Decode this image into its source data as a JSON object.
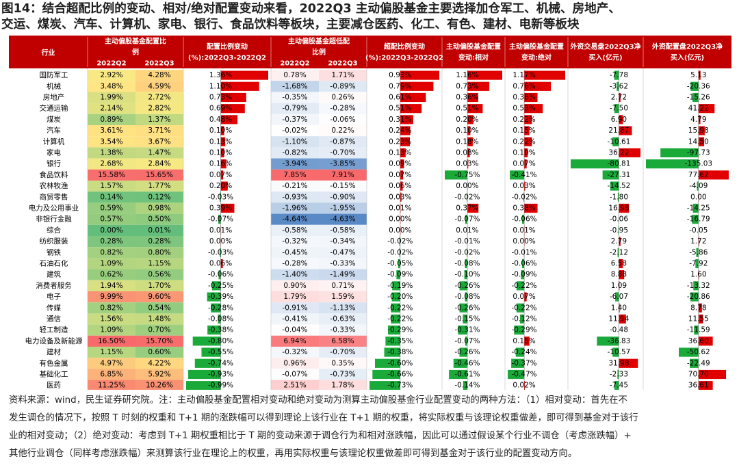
{
  "title_lines": [
    "图14：结合超配比例的变动、相对/绝对配置变动来看，2022Q3 主动偏股基金主要选择加仓军工、机械、房地产、",
    "交运、煤炭、汽车、计算机、家电、银行、食品饮料等板块，主要减仓医药、化工、有色、建材、电新等板块"
  ],
  "footer_lines": [
    "资料来源：wind，民生证券研究院。注：主动偏股基金配置相对变动和绝对变动为测算主动偏股基金行业配置变动的两种方法：（1）相对变动：首先在不",
    "发生调仓的情况下，按照 T 时刻的权重和 T+1 期的涨跌幅可以得到理论上该行业在 T+1 期的权重，将实际权重与该理论权重做差，即可得到基金对于该行",
    "业的相对变动；（2）绝对变动：考虑到 T+1 期权重相比于 T 期的变动来源于调仓行为和相对涨跌幅，因此可以通过假设某个行业不调仓（考虑涨跌幅）+",
    "其他行业调仓（同样考虑涨跌幅）来测算该行业在理论上的权重，再用实际权重与该理论权重做差即可得到基金对于该行业的配置变动方向。"
  ],
  "chart_data": {
    "type": "table",
    "header_row1": {
      "industry": "行业",
      "weight": "主动偏股基金配置比例",
      "weight_change": "配置比例变动",
      "overweight": "主动偏股基金超低配比例",
      "overweight_change": "超配比例变动",
      "relative_change": "主动偏股基金配置变动:相对",
      "absolute_change": "主动偏股基金配置变动:绝对",
      "foreign_trading": "外资交易盘2022Q3净买入(亿元)",
      "foreign_allocation": "外资配置盘2022Q3净买入(亿元)"
    },
    "header_row2": {
      "q2": "2022Q2",
      "q3": "2022Q3",
      "weight_change_sub": "(%):2022Q3-2022Q2",
      "overweight_change_sub": "(%):2022Q3-2022Q2"
    },
    "colors": {
      "header_bg": "#c00000",
      "bar_pos": "#e00000",
      "bar_neg": "#1aaa3a",
      "heat_high": "#f8696b",
      "heat_mid": "#ffeb84",
      "heat_low": "#63be7b",
      "blue_low": "#5a8ac6",
      "red_high": "#f8696b"
    },
    "axis_ranges": {
      "weight_change": [
        -0.99,
        1.36
      ],
      "overweight_change": [
        -0.73,
        0.93
      ],
      "relative_change": [
        -0.75,
        1.16
      ],
      "absolute_change": [
        -0.47,
        1.17
      ],
      "foreign_trading": [
        -80.81,
        36.22
      ],
      "foreign_allocation": [
        -135.03,
        77.62
      ]
    },
    "rows": [
      {
        "industry": "国防军工",
        "w_q2": "2.92%",
        "w_q3": "4.28%",
        "w_chg": 1.36,
        "o_q2": "0.78%",
        "o_q3": "1.71%",
        "o_chg": 0.93,
        "rel": 1.16,
        "abs": 1.17,
        "ft": -7.78,
        "fa": 5.13
      },
      {
        "industry": "机械",
        "w_q2": "3.48%",
        "w_q3": "4.59%",
        "w_chg": 1.1,
        "o_q2": "-1.68%",
        "o_q3": "-0.89%",
        "o_chg": 0.79,
        "rel": 0.73,
        "abs": 0.76,
        "ft": -3.62,
        "fa": -20.36
      },
      {
        "industry": "房地产",
        "w_q2": "1.99%",
        "w_q3": "2.72%",
        "w_chg": 0.73,
        "o_q2": "-0.35%",
        "o_q3": "0.26%",
        "o_chg": 0.61,
        "rel": 0.36,
        "abs": 0.38,
        "ft": 2.72,
        "fa": -15.26
      },
      {
        "industry": "交通运输",
        "w_q2": "2.14%",
        "w_q3": "2.82%",
        "w_chg": 0.69,
        "o_q2": "-0.79%",
        "o_q3": "-0.28%",
        "o_chg": 0.51,
        "rel": 0.51,
        "abs": 0.53,
        "ft": -7.5,
        "fa": 41.22
      },
      {
        "industry": "煤炭",
        "w_q2": "0.89%",
        "w_q3": "1.37%",
        "w_chg": 0.48,
        "o_q2": "-0.37%",
        "o_q3": "-0.06%",
        "o_chg": 0.31,
        "rel": 0.2,
        "abs": 0.22,
        "ft": 6.9,
        "fa": 4.79
      },
      {
        "industry": "汽车",
        "w_q2": "3.61%",
        "w_q3": "3.71%",
        "w_chg": 0.1,
        "o_q2": "-0.02%",
        "o_q3": "0.22%",
        "o_chg": 0.24,
        "rel": 0.1,
        "abs": 0.15,
        "ft": 21.87,
        "fa": 15.98
      },
      {
        "industry": "计算机",
        "w_q2": "3.54%",
        "w_q3": "3.67%",
        "w_chg": 0.13,
        "o_q2": "-1.10%",
        "o_q3": "-0.87%",
        "o_chg": 0.23,
        "rel": 0.18,
        "abs": 0.22,
        "ft": -10.61,
        "fa": 14.5
      },
      {
        "industry": "家电",
        "w_q2": "1.38%",
        "w_q3": "1.47%",
        "w_chg": 0.1,
        "o_q2": "-0.82%",
        "o_q3": "-0.70%",
        "o_chg": 0.13,
        "rel": 0.08,
        "abs": 0.1,
        "ft": 36.22,
        "fa": -97.73
      },
      {
        "industry": "银行",
        "w_q2": "2.68%",
        "w_q3": "2.84%",
        "w_chg": 0.16,
        "o_q2": "-3.94%",
        "o_q3": "-3.85%",
        "o_chg": 0.09,
        "rel": 0.03,
        "abs": 0.07,
        "ft": -80.81,
        "fa": -135.03
      },
      {
        "industry": "食品饮料",
        "w_q2": "15.58%",
        "w_q3": "15.65%",
        "w_chg": 0.07,
        "o_q2": "7.85%",
        "o_q3": "7.91%",
        "o_chg": 0.07,
        "rel": -0.75,
        "abs": -0.41,
        "ft": -27.31,
        "fa": 77.62
      },
      {
        "industry": "农林牧渔",
        "w_q2": "1.57%",
        "w_q3": "1.77%",
        "w_chg": 0.2,
        "o_q2": "-0.21%",
        "o_q3": "-0.15%",
        "o_chg": 0.06,
        "rel": 0.0,
        "abs": 0.03,
        "ft": -14.52,
        "fa": -4.09
      },
      {
        "industry": "商贸零售",
        "w_q2": "0.14%",
        "w_q3": "0.12%",
        "w_chg": -0.03,
        "o_q2": "-0.93%",
        "o_q3": "-0.90%",
        "o_chg": 0.03,
        "rel": -0.02,
        "abs": -0.02,
        "ft": -1.8,
        "fa": 0.0
      },
      {
        "industry": "电力及公用事业",
        "w_q2": "0.59%",
        "w_q3": "0.98%",
        "w_chg": 0.39,
        "o_q2": "-1.96%",
        "o_q3": "-1.95%",
        "o_chg": 0.01,
        "rel": 0.37,
        "abs": 0.38,
        "ft": 16.98,
        "fa": -14.25
      },
      {
        "industry": "非银行金融",
        "w_q2": "0.57%",
        "w_q3": "0.50%",
        "w_chg": -0.07,
        "o_q2": "-4.64%",
        "o_q3": "-4.63%",
        "o_chg": 0.0,
        "rel": -0.07,
        "abs": -0.06,
        "ft": -0.06,
        "fa": -16.79
      },
      {
        "industry": "综合",
        "w_q2": "0.00%",
        "w_q3": "0.01%",
        "w_chg": 0.01,
        "o_q2": "-0.58%",
        "o_q3": "-0.58%",
        "o_chg": 0.0,
        "rel": 0.01,
        "abs": 0.01,
        "ft": -0.95,
        "fa": -0.05
      },
      {
        "industry": "纺织服装",
        "w_q2": "0.28%",
        "w_q3": "0.28%",
        "w_chg": 0.0,
        "o_q2": "-0.32%",
        "o_q3": "-0.34%",
        "o_chg": -0.02,
        "rel": -0.01,
        "abs": 0.0,
        "ft": 2.79,
        "fa": 1.72
      },
      {
        "industry": "钢铁",
        "w_q2": "0.82%",
        "w_q3": "0.80%",
        "w_chg": -0.03,
        "o_q2": "-0.45%",
        "o_q3": "-0.47%",
        "o_chg": -0.02,
        "rel": -0.02,
        "abs": -0.01,
        "ft": -2.12,
        "fa": -5.86
      },
      {
        "industry": "石油石化",
        "w_q2": "1.09%",
        "w_q3": "1.15%",
        "w_chg": 0.06,
        "o_q2": "-0.28%",
        "o_q3": "-0.33%",
        "o_chg": -0.05,
        "rel": -0.08,
        "abs": -0.06,
        "ft": 6.58,
        "fa": -7.92
      },
      {
        "industry": "建筑",
        "w_q2": "0.62%",
        "w_q3": "0.56%",
        "w_chg": -0.06,
        "o_q2": "-1.40%",
        "o_q3": "-1.49%",
        "o_chg": -0.09,
        "rel": -0.1,
        "abs": -0.09,
        "ft": 8.88,
        "fa": 1.6
      },
      {
        "industry": "消费者服务",
        "w_q2": "1.94%",
        "w_q3": "1.70%",
        "w_chg": -0.25,
        "o_q2": "0.90%",
        "o_q3": "0.71%",
        "o_chg": -0.19,
        "rel": -0.26,
        "abs": -0.22,
        "ft": 1.09,
        "fa": -13.32
      },
      {
        "industry": "电子",
        "w_q2": "9.99%",
        "w_q3": "9.60%",
        "w_chg": -0.39,
        "o_q2": "1.79%",
        "o_q3": "1.59%",
        "o_chg": -0.2,
        "rel": -0.08,
        "abs": 0.07,
        "ft": -6.07,
        "fa": -20.86
      },
      {
        "industry": "传媒",
        "w_q2": "0.82%",
        "w_q3": "0.54%",
        "w_chg": -0.28,
        "o_q2": "-0.91%",
        "o_q3": "-1.13%",
        "o_chg": -0.22,
        "rel": -0.26,
        "abs": -0.22,
        "ft": 1.4,
        "fa": 8.78
      },
      {
        "industry": "通信",
        "w_q2": "1.56%",
        "w_q3": "1.48%",
        "w_chg": -0.08,
        "o_q2": "-0.41%",
        "o_q3": "-0.63%",
        "o_chg": -0.22,
        "rel": -0.15,
        "abs": -0.12,
        "ft": 11.94,
        "fa": 11.55
      },
      {
        "industry": "轻工制造",
        "w_q2": "1.09%",
        "w_q3": "0.70%",
        "w_chg": -0.38,
        "o_q2": "-0.04%",
        "o_q3": "-0.33%",
        "o_chg": -0.29,
        "rel": -0.31,
        "abs": -0.29,
        "ft": -0.48,
        "fa": -11.59
      },
      {
        "industry": "电力设备及新能源",
        "w_q2": "16.50%",
        "w_q3": "15.70%",
        "w_chg": -0.8,
        "o_q2": "6.94%",
        "o_q3": "6.58%",
        "o_chg": -0.35,
        "rel": -0.07,
        "abs": 0.15,
        "ft": -36.83,
        "fa": 36.6
      },
      {
        "industry": "建材",
        "w_q2": "1.15%",
        "w_q3": "0.60%",
        "w_chg": -0.55,
        "o_q2": "-0.32%",
        "o_q3": "-0.70%",
        "o_chg": -0.38,
        "rel": -0.26,
        "abs": -0.24,
        "ft": -10.57,
        "fa": -50.62
      },
      {
        "industry": "有色金属",
        "w_q2": "4.97%",
        "w_q3": "4.22%",
        "w_chg": -0.74,
        "o_q2": "0.96%",
        "o_q3": "0.35%",
        "o_chg": -0.6,
        "rel": -0.46,
        "abs": -0.37,
        "ft": 31.98,
        "fa": -22.49
      },
      {
        "industry": "基础化工",
        "w_q2": "6.85%",
        "w_q3": "5.92%",
        "w_chg": -0.93,
        "o_q2": "-0.07%",
        "o_q3": "-0.73%",
        "o_chg": -0.66,
        "rel": -0.61,
        "abs": -0.47,
        "ft": -2.33,
        "fa": 70.7
      },
      {
        "industry": "医药",
        "w_q2": "11.25%",
        "w_q3": "10.26%",
        "w_chg": -0.99,
        "o_q2": "2.51%",
        "o_q3": "1.78%",
        "o_chg": -0.73,
        "rel": -0.14,
        "abs": 0.02,
        "ft": -7.45,
        "fa": 36.61
      }
    ]
  }
}
